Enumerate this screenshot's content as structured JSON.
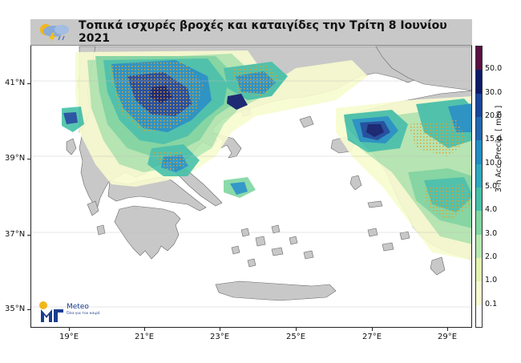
{
  "map": {
    "title": "Τοπικά ισχυρές βροχές και καταιγίδες την Τρίτη 8 Ιουνίου 2021",
    "lat_labels": [
      "41°N",
      "39°N",
      "37°N",
      "35°N"
    ],
    "lon_labels": [
      "19°E",
      "21°E",
      "23°E",
      "25°E",
      "27°E",
      "29°E"
    ],
    "colorbar": {
      "title": "3-h Acc. Precip. [ mm ]",
      "levels": [
        "50.0",
        "30.0",
        "20.0",
        "15.0",
        "10.0",
        "5.0",
        "4.0",
        "3.0",
        "2.0",
        "1.0",
        "0.1"
      ],
      "colors": [
        "#5a1040",
        "#0c1a6a",
        "#17459b",
        "#1e68b0",
        "#1f8ec3",
        "#2ba9bf",
        "#45c1a8",
        "#7fd7a0",
        "#b5e8b0",
        "#e3f3b0",
        "#f8fccf",
        "#ffffff"
      ]
    },
    "land_color": "#c8c8c8",
    "sea_color": "#ffffff"
  },
  "branding": {
    "logo_name": "Meteo",
    "logo_tagline": "Όλα για τον καιρό"
  }
}
